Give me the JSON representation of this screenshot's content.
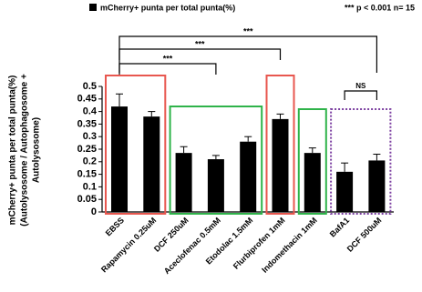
{
  "chart_data": {
    "type": "bar",
    "legend_label": "mCherry+ punta per total punta(%)",
    "annotation": "*** p < 0.001  n= 15",
    "y_label": [
      "mCherry+ punta per total punta(%)",
      "(Autolysosome / Autophagosome +",
      "Autolysosome)"
    ],
    "categories": [
      "EBSS",
      "Rapamycin 0.25uM",
      "DCF 250uM",
      "Aceclofenac 0.5mM",
      "Etodolac 1.5mM",
      "Flurbiprofen 1mM",
      "Indomethacin 1mM",
      "BafA1",
      "DCF 500uM"
    ],
    "values": [
      0.42,
      0.38,
      0.235,
      0.21,
      0.28,
      0.37,
      0.235,
      0.16,
      0.205
    ],
    "errors": [
      0.05,
      0.02,
      0.025,
      0.015,
      0.02,
      0.02,
      0.02,
      0.035,
      0.025
    ],
    "color": "#000000",
    "ylim": [
      0,
      0.5
    ],
    "yticks": [
      0,
      0.05,
      0.1,
      0.15,
      0.2,
      0.25,
      0.3,
      0.35,
      0.4,
      0.45,
      0.5
    ],
    "brackets": [
      {
        "from": "EBSS",
        "to": "DCF 500uM",
        "label": "***"
      },
      {
        "from": "EBSS",
        "to": "Flurbiprofen 1mM",
        "label": "***"
      },
      {
        "from": "EBSS",
        "to": "Aceclofenac 0.5mM",
        "label": "***"
      },
      {
        "from": "BafA1",
        "to": "DCF 500uM",
        "label": "NS"
      }
    ],
    "groups": [
      {
        "from": "EBSS",
        "to": "Rapamycin 0.25uM",
        "color": "#e8574f",
        "dashed": false
      },
      {
        "from": "DCF 250uM",
        "to": "Etodolac 1.5mM",
        "color": "#2fb34a",
        "dashed": false
      },
      {
        "from": "Flurbiprofen 1mM",
        "to": "Flurbiprofen 1mM",
        "color": "#e8574f",
        "dashed": false
      },
      {
        "from": "Indomethacin 1mM",
        "to": "Indomethacin 1mM",
        "color": "#2fb34a",
        "dashed": false
      },
      {
        "from": "BafA1",
        "to": "DCF 500uM",
        "color": "#7b3fa0",
        "dashed": true
      }
    ]
  }
}
